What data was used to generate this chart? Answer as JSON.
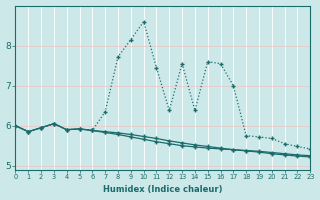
{
  "xlabel": "Humidex (Indice chaleur)",
  "bg_color": "#cde8e8",
  "grid_color": "#e8c8c8",
  "line_color": "#1a6b6b",
  "x_data": [
    0,
    1,
    2,
    3,
    4,
    5,
    6,
    7,
    8,
    9,
    10,
    11,
    12,
    13,
    14,
    15,
    16,
    17,
    18,
    19,
    20,
    21,
    22,
    23
  ],
  "line1": [
    6.0,
    5.85,
    5.95,
    6.05,
    5.9,
    5.92,
    5.88,
    5.83,
    5.78,
    5.72,
    5.66,
    5.6,
    5.55,
    5.5,
    5.47,
    5.44,
    5.42,
    5.4,
    5.38,
    5.36,
    5.33,
    5.3,
    5.27,
    5.25
  ],
  "line2": [
    6.0,
    5.85,
    5.95,
    6.05,
    5.9,
    5.92,
    5.88,
    6.35,
    7.72,
    8.15,
    8.6,
    7.45,
    6.38,
    7.55,
    6.38,
    7.6,
    7.55,
    7.0,
    5.75,
    5.72,
    5.68,
    5.55,
    5.48,
    5.42
  ],
  "line3": [
    6.0,
    5.85,
    5.95,
    6.05,
    5.9,
    5.92,
    5.88,
    5.85,
    5.82,
    5.78,
    5.73,
    5.68,
    5.62,
    5.57,
    5.52,
    5.48,
    5.44,
    5.4,
    5.37,
    5.34,
    5.3,
    5.27,
    5.24,
    5.22
  ],
  "ylim": [
    4.9,
    9.0
  ],
  "xlim": [
    0,
    23
  ],
  "yticks": [
    5,
    6,
    7,
    8
  ],
  "xticks": [
    0,
    1,
    2,
    3,
    4,
    5,
    6,
    7,
    8,
    9,
    10,
    11,
    12,
    13,
    14,
    15,
    16,
    17,
    18,
    19,
    20,
    21,
    22,
    23
  ],
  "figsize": [
    3.2,
    2.0
  ],
  "dpi": 100
}
